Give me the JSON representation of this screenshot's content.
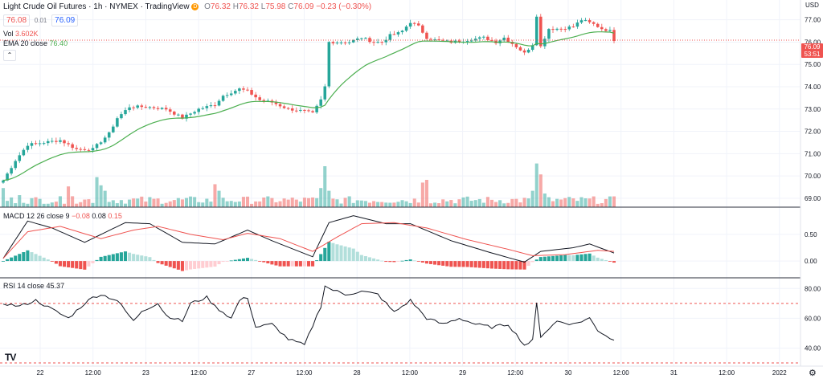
{
  "header": {
    "title": "Light Crude Oil Futures · 1h · NYMEX · TradingView",
    "badge_d": "D",
    "ohlc": {
      "o_label": "O",
      "o": "76.32",
      "h_label": "H",
      "h": "76.32",
      "l_label": "L",
      "l": "75.98",
      "c_label": "C",
      "c": "76.09",
      "change": "−0.23 (−0.30%)"
    },
    "bid": "76.08",
    "spread": "0.01",
    "ask": "76.09"
  },
  "legends": {
    "vol_label": "Vol",
    "vol_value": "3.602K",
    "ema_label": "EMA 20 close",
    "ema_value": "76.40",
    "macd_label": "MACD 12 26 close 9",
    "macd_v1": "−0.08",
    "macd_v2": "0.08",
    "macd_v3": "0.15",
    "rsi_label": "RSI 14 close",
    "rsi_value": "45.37"
  },
  "axis": {
    "currency": "USD",
    "last_price": "76.09",
    "countdown": "53:51",
    "price_ticks": [
      "77.00",
      "76.00",
      "75.00",
      "74.00",
      "73.00",
      "72.00",
      "71.00",
      "70.00",
      "69.00"
    ],
    "macd_ticks": [
      "0.50",
      "0.00"
    ],
    "rsi_ticks": [
      "80.00",
      "60.00",
      "40.00"
    ],
    "time_ticks": [
      "22",
      "12:00",
      "23",
      "12:00",
      "27",
      "12:00",
      "28",
      "12:00",
      "29",
      "12:00",
      "30",
      "12:00",
      "31",
      "12:00",
      "2022"
    ],
    "logo": "TV"
  },
  "colors": {
    "up": "#26a69a",
    "down": "#ef5350",
    "ema": "#4caf50",
    "macd": "#131722",
    "signal": "#ef5350",
    "hist_up_strong": "#26a69a",
    "hist_up_weak": "#b2dfdb",
    "hist_down_strong": "#ef5350",
    "hist_down_weak": "#ffcdd2",
    "rsi": "#131722",
    "rsi_band": "#ef5350",
    "grid": "#f0f3fa"
  },
  "chart_data": [
    {
      "type": "candlestick",
      "title": "Light Crude Oil Futures · 1h · NYMEX",
      "ylim": [
        68.6,
        77.6
      ],
      "x_ticks": [
        "22",
        "12:00",
        "23",
        "12:00",
        "27",
        "12:00",
        "28",
        "12:00",
        "29",
        "12:00",
        "30",
        "12:00",
        "31",
        "12:00",
        "2022"
      ],
      "anchors": [
        [
          0,
          69.8
        ],
        [
          3,
          70.7
        ],
        [
          6,
          71.4
        ],
        [
          10,
          71.5
        ],
        [
          14,
          71.6
        ],
        [
          18,
          71.2
        ],
        [
          22,
          71.2
        ],
        [
          26,
          71.9
        ],
        [
          28,
          72.6
        ],
        [
          31,
          73.1
        ],
        [
          35,
          73.1
        ],
        [
          40,
          73.0
        ],
        [
          44,
          72.6
        ],
        [
          48,
          73.0
        ],
        [
          52,
          73.2
        ],
        [
          54,
          73.6
        ],
        [
          58,
          73.9
        ],
        [
          60,
          73.8
        ],
        [
          63,
          73.4
        ],
        [
          66,
          73.3
        ],
        [
          70,
          73.0
        ],
        [
          74,
          72.9
        ],
        [
          76,
          72.8
        ],
        [
          78,
          73.4
        ],
        [
          79,
          74.0
        ],
        [
          80,
          76.0
        ],
        [
          82,
          76.0
        ],
        [
          85,
          76.0
        ],
        [
          88,
          76.2
        ],
        [
          91,
          76.0
        ],
        [
          93,
          76.0
        ],
        [
          95,
          76.3
        ],
        [
          97,
          76.4
        ],
        [
          98,
          76.5
        ],
        [
          100,
          76.9
        ],
        [
          102,
          76.7
        ],
        [
          104,
          76.2
        ],
        [
          106,
          76.1
        ],
        [
          110,
          76.0
        ],
        [
          114,
          76.1
        ],
        [
          118,
          76.2
        ],
        [
          121,
          76.0
        ],
        [
          123,
          76.2
        ],
        [
          126,
          75.8
        ],
        [
          128,
          75.5
        ],
        [
          130,
          75.9
        ],
        [
          131,
          77.2
        ],
        [
          132,
          75.8
        ],
        [
          134,
          76.6
        ],
        [
          137,
          76.6
        ],
        [
          140,
          76.7
        ],
        [
          142,
          77.0
        ],
        [
          145,
          76.8
        ],
        [
          147,
          76.6
        ],
        [
          149,
          76.5
        ],
        [
          150,
          76.1
        ]
      ],
      "ema20_last": 76.4,
      "volume": {
        "ymax": 10,
        "spikes": [
          [
            0,
            3.5
          ],
          [
            4,
            2.2
          ],
          [
            16,
            3.8
          ],
          [
            17,
            2.0
          ],
          [
            23,
            5.5
          ],
          [
            24,
            4.0
          ],
          [
            25,
            3.0
          ],
          [
            52,
            4.2
          ],
          [
            53,
            3.0
          ],
          [
            78,
            3.5
          ],
          [
            79,
            7.5
          ],
          [
            80,
            3.0
          ],
          [
            103,
            4.5
          ],
          [
            104,
            5.0
          ],
          [
            130,
            3.0
          ],
          [
            131,
            8.0
          ],
          [
            132,
            6.0
          ],
          [
            133,
            2.5
          ]
        ]
      }
    },
    {
      "type": "macd",
      "params": "12 26 close 9",
      "ylim": [
        -0.3,
        0.95
      ],
      "macd_anchors": [
        [
          0,
          0.05
        ],
        [
          6,
          0.75
        ],
        [
          12,
          0.62
        ],
        [
          20,
          0.35
        ],
        [
          30,
          0.72
        ],
        [
          36,
          0.7
        ],
        [
          44,
          0.35
        ],
        [
          52,
          0.32
        ],
        [
          60,
          0.58
        ],
        [
          66,
          0.38
        ],
        [
          72,
          0.2
        ],
        [
          76,
          0.08
        ],
        [
          80,
          0.72
        ],
        [
          86,
          0.85
        ],
        [
          94,
          0.7
        ],
        [
          100,
          0.7
        ],
        [
          110,
          0.38
        ],
        [
          120,
          0.15
        ],
        [
          128,
          -0.02
        ],
        [
          132,
          0.18
        ],
        [
          140,
          0.25
        ],
        [
          144,
          0.32
        ],
        [
          150,
          0.15
        ]
      ],
      "signal_anchors": [
        [
          0,
          0.05
        ],
        [
          6,
          0.55
        ],
        [
          14,
          0.65
        ],
        [
          24,
          0.42
        ],
        [
          32,
          0.58
        ],
        [
          38,
          0.65
        ],
        [
          46,
          0.5
        ],
        [
          54,
          0.4
        ],
        [
          60,
          0.52
        ],
        [
          68,
          0.42
        ],
        [
          76,
          0.18
        ],
        [
          82,
          0.45
        ],
        [
          88,
          0.7
        ],
        [
          96,
          0.72
        ],
        [
          104,
          0.62
        ],
        [
          114,
          0.4
        ],
        [
          124,
          0.22
        ],
        [
          130,
          0.1
        ],
        [
          138,
          0.12
        ],
        [
          146,
          0.2
        ],
        [
          150,
          0.18
        ]
      ]
    },
    {
      "type": "rsi",
      "params": "14 close",
      "ylim": [
        30,
        85
      ],
      "bands": [
        70,
        30
      ],
      "anchors": [
        [
          0,
          70
        ],
        [
          4,
          68
        ],
        [
          8,
          72
        ],
        [
          12,
          66
        ],
        [
          16,
          60
        ],
        [
          20,
          70
        ],
        [
          22,
          74
        ],
        [
          24,
          76
        ],
        [
          28,
          72
        ],
        [
          32,
          58
        ],
        [
          34,
          65
        ],
        [
          38,
          70
        ],
        [
          40,
          62
        ],
        [
          44,
          58
        ],
        [
          46,
          70
        ],
        [
          50,
          74
        ],
        [
          52,
          68
        ],
        [
          56,
          60
        ],
        [
          58,
          72
        ],
        [
          60,
          74
        ],
        [
          62,
          54
        ],
        [
          66,
          56
        ],
        [
          70,
          46
        ],
        [
          74,
          42
        ],
        [
          78,
          68
        ],
        [
          79,
          82
        ],
        [
          80,
          80
        ],
        [
          84,
          76
        ],
        [
          88,
          78
        ],
        [
          92,
          76
        ],
        [
          96,
          64
        ],
        [
          100,
          72
        ],
        [
          104,
          60
        ],
        [
          108,
          56
        ],
        [
          112,
          60
        ],
        [
          116,
          56
        ],
        [
          120,
          54
        ],
        [
          124,
          56
        ],
        [
          128,
          42
        ],
        [
          130,
          45
        ],
        [
          131,
          70
        ],
        [
          132,
          48
        ],
        [
          136,
          58
        ],
        [
          140,
          56
        ],
        [
          144,
          60
        ],
        [
          146,
          52
        ],
        [
          150,
          45
        ]
      ]
    }
  ]
}
